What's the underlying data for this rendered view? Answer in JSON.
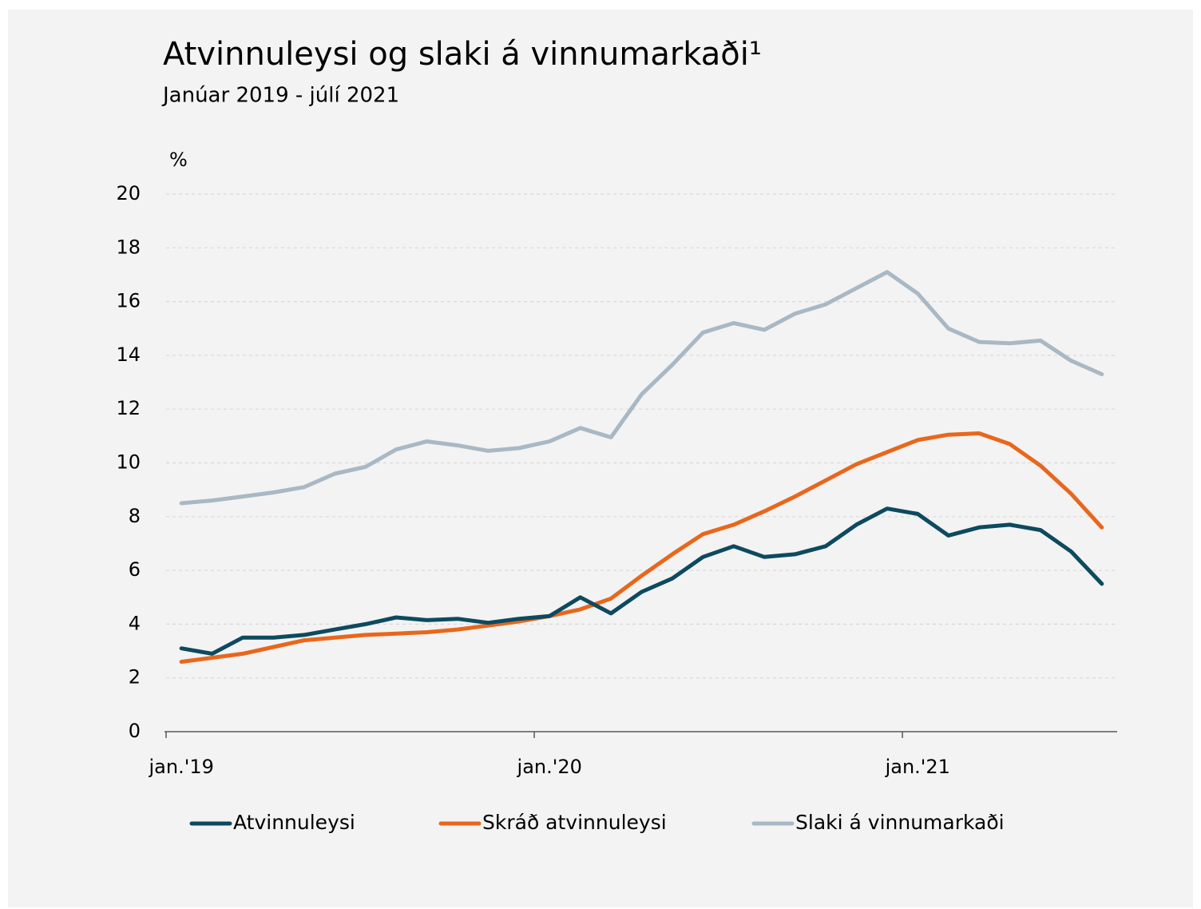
{
  "chart_data": {
    "type": "line",
    "title": "Atvinnuleysi og slaki á vinnumarkaði¹",
    "subtitle": "Janúar 2019 - júlí 2021",
    "y_axis_label": "%",
    "categories": [
      "jan.'19",
      null,
      null,
      null,
      null,
      null,
      null,
      null,
      null,
      null,
      null,
      null,
      "jan.'20",
      null,
      null,
      null,
      null,
      null,
      null,
      null,
      null,
      null,
      null,
      null,
      "jan.'21",
      null,
      null,
      null,
      null,
      null,
      null
    ],
    "series": [
      {
        "name": "Atvinnuleysi",
        "color": "#0d4a5f",
        "values": [
          3.1,
          2.9,
          3.5,
          3.5,
          3.6,
          3.8,
          4.0,
          4.25,
          4.15,
          4.2,
          4.05,
          4.2,
          4.3,
          5.0,
          4.4,
          5.2,
          5.7,
          6.5,
          6.9,
          6.5,
          6.6,
          6.9,
          7.7,
          8.3,
          8.1,
          7.3,
          7.6,
          7.7,
          7.5,
          6.7,
          5.5
        ]
      },
      {
        "name": "Skráð atvinnuleysi",
        "color": "#e8671c",
        "values": [
          2.6,
          2.75,
          2.9,
          3.15,
          3.4,
          3.5,
          3.6,
          3.65,
          3.7,
          3.8,
          3.95,
          4.1,
          4.3,
          4.55,
          4.95,
          5.8,
          6.6,
          7.35,
          7.7,
          8.2,
          8.75,
          9.35,
          9.95,
          10.4,
          10.85,
          11.05,
          11.1,
          10.7,
          9.9,
          8.85,
          7.6
        ]
      },
      {
        "name": "Slaki á vinnumarkaði",
        "color": "#a8b8c4",
        "values": [
          8.5,
          8.6,
          8.75,
          8.9,
          9.1,
          9.6,
          9.85,
          10.5,
          10.8,
          10.65,
          10.45,
          10.55,
          10.8,
          11.3,
          10.95,
          12.55,
          13.65,
          14.85,
          15.2,
          14.95,
          15.55,
          15.9,
          16.5,
          17.1,
          16.3,
          15.0,
          14.5,
          14.45,
          14.55,
          13.8,
          13.3
        ]
      }
    ],
    "ylim": [
      0,
      20
    ],
    "yticks": [
      0,
      2,
      4,
      6,
      8,
      10,
      12,
      14,
      16,
      18,
      20
    ],
    "grid": true,
    "legend": "bottom"
  }
}
